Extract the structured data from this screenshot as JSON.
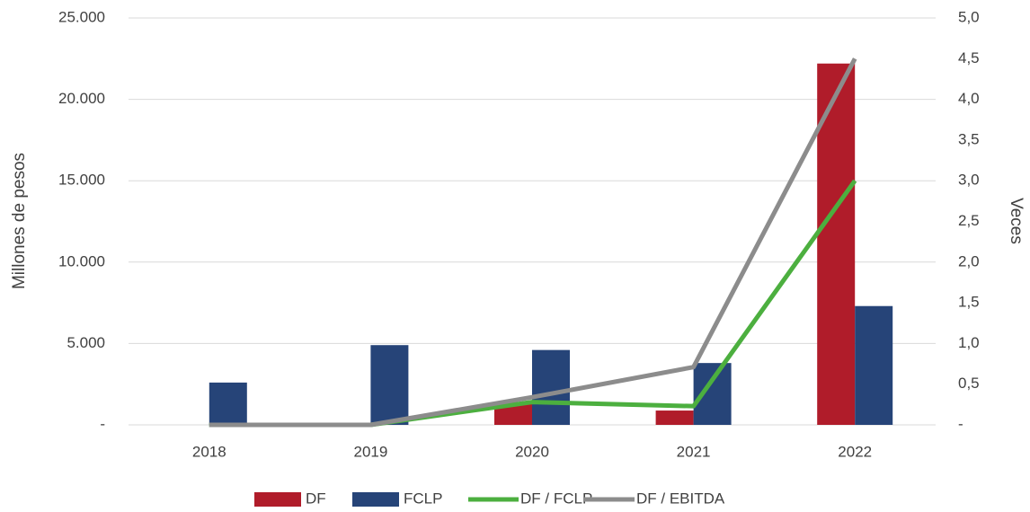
{
  "chart_data": {
    "type": "bar",
    "categories": [
      "2018",
      "2019",
      "2020",
      "2021",
      "2022"
    ],
    "y_label": "Millones de pesos",
    "y2_label": "Veces",
    "ylim": [
      0,
      25000
    ],
    "yticks": [
      {
        "value": 0,
        "label": "-"
      },
      {
        "value": 5000,
        "label": "5.000"
      },
      {
        "value": 10000,
        "label": "10.000"
      },
      {
        "value": 15000,
        "label": "15.000"
      },
      {
        "value": 20000,
        "label": "20.000"
      },
      {
        "value": 25000,
        "label": "25.000"
      }
    ],
    "y2lim": [
      0,
      5
    ],
    "y2ticks": [
      {
        "value": 0,
        "label": "-"
      },
      {
        "value": 0.5,
        "label": "0,5"
      },
      {
        "value": 1,
        "label": "1,0"
      },
      {
        "value": 1.5,
        "label": "1,5"
      },
      {
        "value": 2,
        "label": "2,0"
      },
      {
        "value": 2.5,
        "label": "2,5"
      },
      {
        "value": 3,
        "label": "3,0"
      },
      {
        "value": 3.5,
        "label": "3,5"
      },
      {
        "value": 4,
        "label": "4,0"
      },
      {
        "value": 4.5,
        "label": "4,5"
      },
      {
        "value": 5,
        "label": "5,0"
      }
    ],
    "grid": true,
    "legend": "bottom",
    "series": [
      {
        "name": "DF",
        "type": "bar",
        "color": "#b01c2a",
        "values": [
          0,
          0,
          1400,
          880,
          22200
        ]
      },
      {
        "name": "FCLP",
        "type": "bar",
        "color": "#264478",
        "values": [
          2600,
          4900,
          4600,
          3800,
          7300
        ]
      },
      {
        "name": "DF / FCLP",
        "type": "line",
        "axis": "y2",
        "color": "#4caf3f",
        "values": [
          0,
          0,
          0.28,
          0.23,
          3.0
        ]
      },
      {
        "name": "DF / EBITDA",
        "type": "line",
        "axis": "y2",
        "color": "#8c8c8c",
        "values": [
          0,
          0,
          0.34,
          0.71,
          4.5
        ]
      }
    ]
  }
}
